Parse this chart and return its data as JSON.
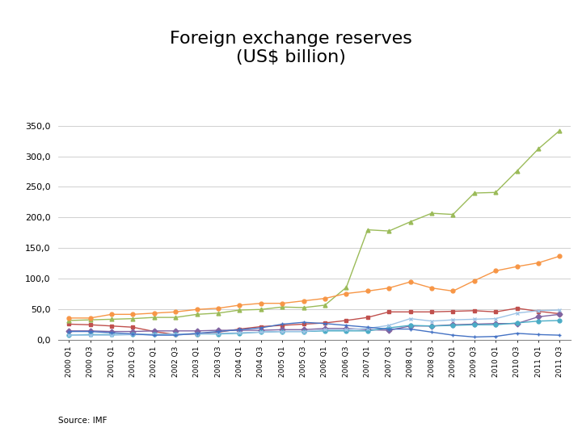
{
  "title": "Foreign exchange reserves\n(US$ billion)",
  "title_fontsize": 16,
  "source_text": "Source: IMF",
  "ylim": [
    0,
    370
  ],
  "yticks": [
    0,
    50,
    100,
    150,
    200,
    250,
    300,
    350
  ],
  "ytick_labels": [
    "0,0",
    "50,0",
    "100,0",
    "150,0",
    "200,0",
    "250,0",
    "300,0",
    "350,0"
  ],
  "quarters": [
    "2000 Q1",
    "2000 Q3",
    "2001 Q1",
    "2001 Q3",
    "2002 Q1",
    "2002 Q3",
    "2003 Q1",
    "2003 Q3",
    "2004 Q1",
    "2004 Q3",
    "2005 Q1",
    "2005 Q3",
    "2006 Q1",
    "2006 Q3",
    "2007 Q1",
    "2007 Q3",
    "2008 Q1",
    "2008 Q3",
    "2009 Q1",
    "2009 Q3",
    "2010 Q1",
    "2010 Q3",
    "2011 Q1",
    "2011 Q3"
  ],
  "series": {
    "Argentina": {
      "color": "#c0504d",
      "marker": "s",
      "values": [
        26,
        25,
        23,
        21,
        14,
        9,
        10,
        13,
        18,
        22,
        24,
        26,
        28,
        32,
        37,
        46,
        46,
        46,
        47,
        48,
        46,
        52,
        47,
        43
      ]
    },
    "Brazil": {
      "color": "#9bbb59",
      "marker": "^",
      "values": [
        32,
        33,
        34,
        35,
        37,
        37,
        42,
        44,
        49,
        50,
        54,
        53,
        57,
        86,
        180,
        178,
        193,
        207,
        205,
        240,
        241,
        276,
        312,
        342
      ]
    },
    "Chile": {
      "color": "#8064a2",
      "marker": "D",
      "values": [
        15,
        15,
        14,
        14,
        15,
        15,
        15,
        16,
        16,
        16,
        17,
        17,
        19,
        19,
        17,
        16,
        23,
        23,
        25,
        26,
        27,
        27,
        38,
        42
      ]
    },
    "Colombia": {
      "color": "#4bacc6",
      "marker": "o",
      "values": [
        8,
        9,
        9,
        9,
        9,
        10,
        10,
        10,
        11,
        13,
        14,
        14,
        15,
        15,
        15,
        20,
        24,
        23,
        24,
        25,
        25,
        28,
        31,
        32
      ]
    },
    "Mexico": {
      "color": "#f79646",
      "marker": "o",
      "values": [
        36,
        36,
        42,
        42,
        44,
        46,
        50,
        52,
        57,
        60,
        60,
        64,
        68,
        76,
        80,
        85,
        95,
        85,
        80,
        97,
        113,
        120,
        126,
        137
      ]
    },
    "Peru": {
      "color": "#9dc3e6",
      "marker": "x",
      "values": [
        8,
        8,
        8,
        9,
        9,
        10,
        10,
        11,
        12,
        13,
        14,
        14,
        17,
        17,
        19,
        24,
        35,
        31,
        33,
        34,
        35,
        44,
        48,
        49
      ]
    },
    "Venezuela": {
      "color": "#4472c4",
      "marker": "+",
      "values": [
        14,
        14,
        12,
        10,
        8,
        8,
        11,
        14,
        17,
        20,
        26,
        29,
        27,
        24,
        21,
        18,
        18,
        13,
        8,
        5,
        6,
        11,
        9,
        8
      ]
    }
  }
}
